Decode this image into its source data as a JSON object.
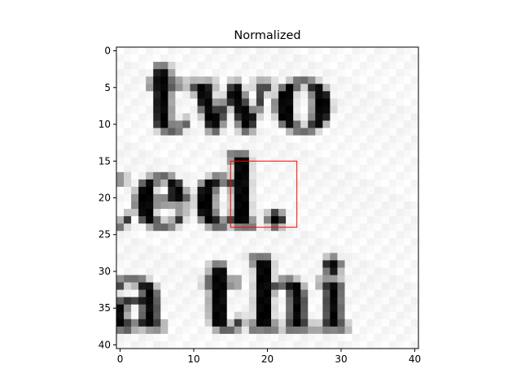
{
  "chart_data": {
    "type": "heatmap",
    "title": "Normalized",
    "xlabel": "",
    "ylabel": "",
    "xlim": [
      -0.5,
      40.5
    ],
    "ylim": [
      40.5,
      -0.5
    ],
    "grid_size": [
      41,
      41
    ],
    "colormap": "gray",
    "x_ticks": [
      0,
      10,
      20,
      30,
      40
    ],
    "y_ticks": [
      0,
      5,
      10,
      15,
      20,
      25,
      30,
      35,
      40
    ],
    "grid": false,
    "highlight_box": {
      "x0": 15,
      "y0": 15,
      "x1": 24,
      "y1": 24,
      "color": "#ff0000"
    },
    "image_content": {
      "description_lines": [
        {
          "text": "two",
          "rows": [
            4,
            11
          ]
        },
        {
          "text": "ted.",
          "rows": [
            15,
            24
          ]
        },
        {
          "text": "a thi",
          "rows": [
            28,
            39
          ]
        }
      ]
    }
  }
}
